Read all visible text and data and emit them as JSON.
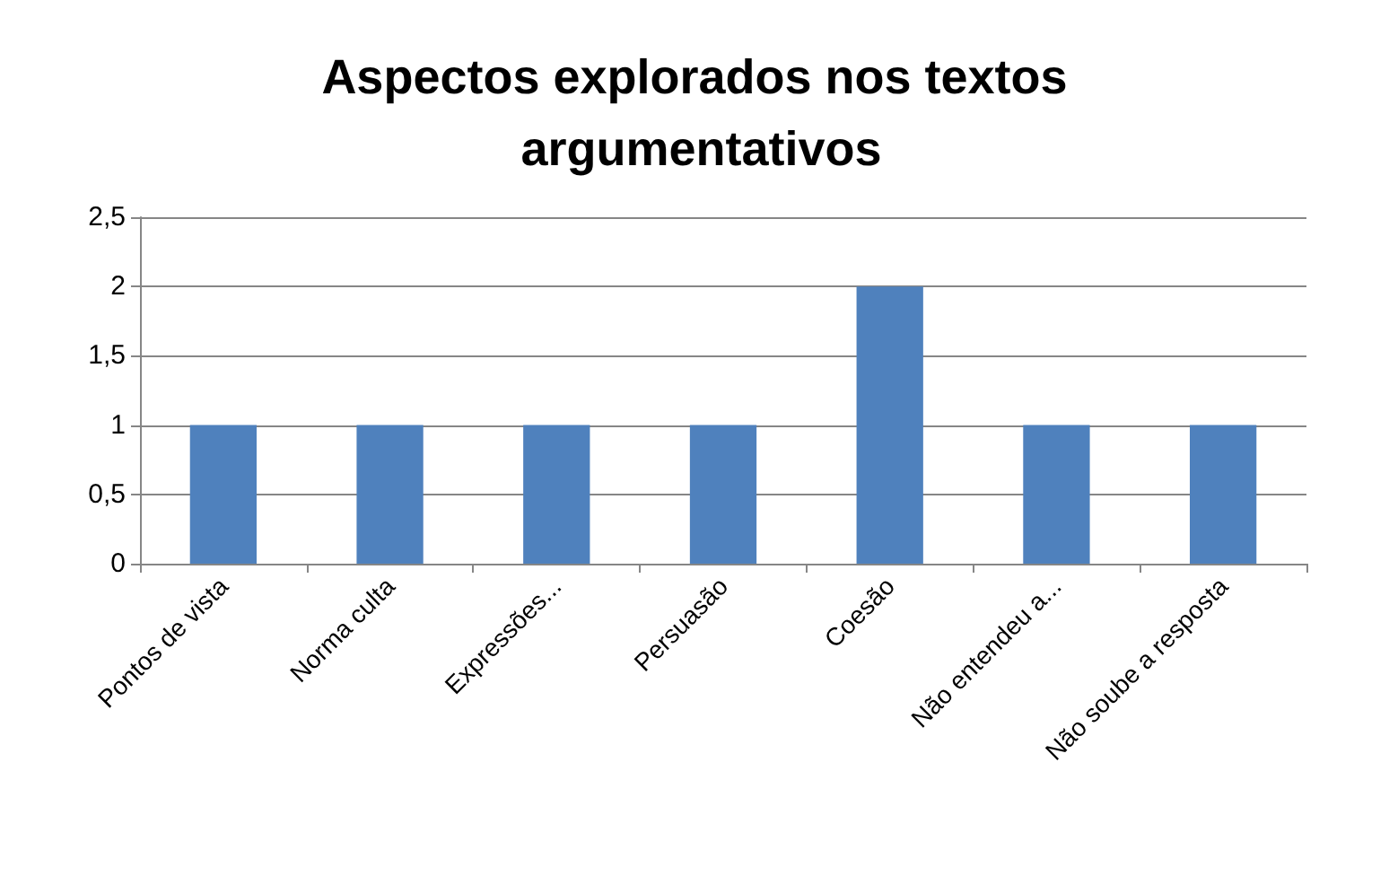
{
  "chart_data": {
    "type": "bar",
    "title": "Aspectos explorados nos textos argumentativos",
    "categories": [
      "Pontos de vista",
      "Norma culta",
      "Expressões...",
      "Persuasão",
      "Coesão",
      "Não entendeu a...",
      "Não soube a resposta"
    ],
    "values": [
      1,
      1,
      1,
      1,
      2,
      1,
      1
    ],
    "color": "#4f81bd",
    "ylim": [
      0,
      2.5
    ],
    "yticks": [
      0,
      {
        "value": 0.5,
        "label": "0,5"
      },
      1,
      {
        "value": 1.5,
        "label": "1,5"
      },
      2,
      {
        "value": 2.5,
        "label": "2,5"
      }
    ],
    "grid": "y"
  }
}
